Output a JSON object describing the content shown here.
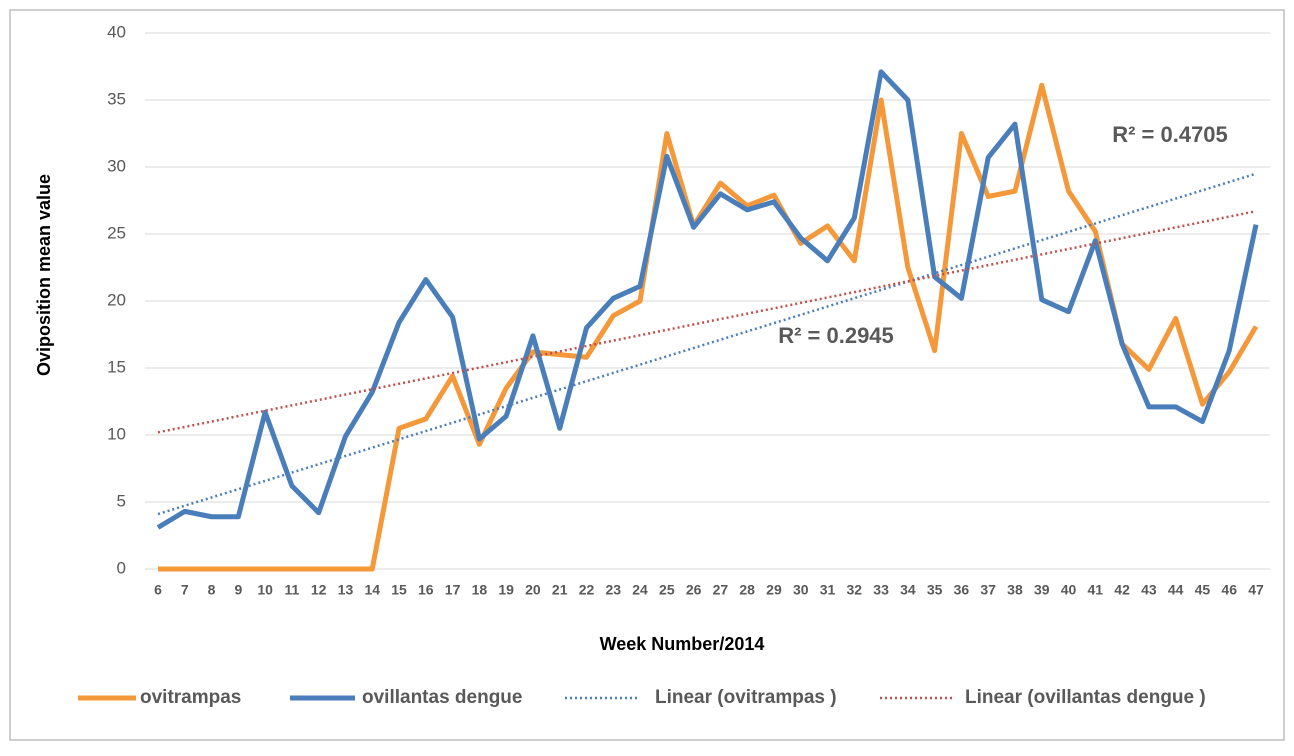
{
  "chart_data": {
    "type": "line",
    "x_label": "Week Number/2014",
    "y_label": "Oviposition mean value",
    "categories": [
      6,
      7,
      8,
      9,
      10,
      11,
      12,
      13,
      14,
      15,
      16,
      17,
      18,
      19,
      20,
      21,
      22,
      23,
      24,
      25,
      26,
      27,
      28,
      29,
      30,
      31,
      32,
      33,
      34,
      35,
      36,
      37,
      38,
      39,
      40,
      41,
      42,
      43,
      44,
      45,
      46,
      47
    ],
    "series": [
      {
        "name": "ovitrampas",
        "color": "#f4983a",
        "values": [
          0,
          0,
          0,
          0,
          0,
          0,
          0,
          0,
          0,
          10.5,
          11.2,
          14.4,
          9.3,
          13.5,
          16.2,
          16,
          15.8,
          18.9,
          20,
          32.5,
          25.6,
          28.8,
          27.1,
          27.9,
          24.3,
          25.6,
          23,
          35,
          22.5,
          16.3,
          32.5,
          27.8,
          28.2,
          36.1,
          28.2,
          25.2,
          16.8,
          14.9,
          18.7,
          12.3,
          14.7,
          18.1
        ]
      },
      {
        "name": "ovillantas dengue",
        "color": "#4a7ebb",
        "values": [
          3.1,
          4.3,
          3.9,
          3.9,
          11.7,
          6.2,
          4.2,
          9.9,
          13.2,
          18.4,
          21.6,
          18.8,
          9.7,
          11.4,
          17.4,
          10.5,
          18,
          20.2,
          21.1,
          30.8,
          25.5,
          28,
          26.8,
          27.4,
          24.7,
          23,
          26.2,
          37.1,
          35,
          21.8,
          20.2,
          30.7,
          33.2,
          20.1,
          19.2,
          24.5,
          16.8,
          12.1,
          12.1,
          11,
          16.3,
          25.7
        ]
      }
    ],
    "trendlines": [
      {
        "name": "Linear (ovitrampas )",
        "color": "#4a7ebb",
        "x": [
          6,
          47
        ],
        "values": [
          4.1,
          29.5
        ]
      },
      {
        "name": "Linear (ovillantas dengue )",
        "color": "#c0504d",
        "x": [
          6,
          47
        ],
        "values": [
          10.2,
          26.7
        ]
      }
    ],
    "annotations": [
      "R² = 0.4705",
      "R² = 0.2945"
    ],
    "ylim": [
      0,
      40
    ],
    "yticks": [
      0,
      5,
      10,
      15,
      20,
      25,
      30,
      35,
      40
    ],
    "grid": true,
    "legend": "bottom"
  }
}
